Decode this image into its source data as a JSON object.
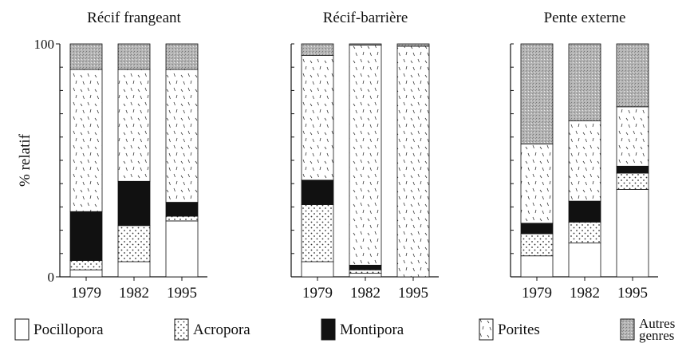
{
  "chart_data": [
    {
      "type": "bar",
      "stacked": true,
      "title": "Récif frangeant",
      "ylabel": "% relatif",
      "categories": [
        "1979",
        "1982",
        "1995"
      ],
      "ylim": [
        0,
        100
      ],
      "yticks": [
        0,
        100
      ],
      "minor_yticks": [
        10,
        20,
        30,
        40,
        50,
        60,
        70,
        80,
        90
      ],
      "series": [
        {
          "name": "Pocillopora",
          "pattern": "white",
          "values": [
            3,
            6.5,
            24
          ]
        },
        {
          "name": "Acropora",
          "pattern": "dots",
          "values": [
            4,
            15.5,
            2
          ]
        },
        {
          "name": "Montipora",
          "pattern": "black",
          "values": [
            21,
            19,
            6
          ]
        },
        {
          "name": "Porites",
          "pattern": "dashes",
          "values": [
            61,
            48,
            57
          ]
        },
        {
          "name": "Autres genres",
          "pattern": "stipple",
          "values": [
            11,
            11,
            11
          ]
        }
      ]
    },
    {
      "type": "bar",
      "stacked": true,
      "title": "Récif-barrière",
      "categories": [
        "1979",
        "1982",
        "1995"
      ],
      "ylim": [
        0,
        100
      ],
      "minor_yticks": [
        0,
        10,
        20,
        30,
        40,
        50,
        60,
        70,
        80,
        90,
        100
      ],
      "series": [
        {
          "name": "Pocillopora",
          "pattern": "white",
          "values": [
            6.5,
            1.5,
            0
          ]
        },
        {
          "name": "Acropora",
          "pattern": "dots",
          "values": [
            24.5,
            1.5,
            0
          ]
        },
        {
          "name": "Montipora",
          "pattern": "black",
          "values": [
            10.5,
            2,
            0
          ]
        },
        {
          "name": "Porites",
          "pattern": "dashes",
          "values": [
            53.5,
            94.5,
            99
          ]
        },
        {
          "name": "Autres genres",
          "pattern": "stipple",
          "values": [
            5,
            0.5,
            1
          ]
        }
      ]
    },
    {
      "type": "bar",
      "stacked": true,
      "title": "Pente externe",
      "categories": [
        "1979",
        "1982",
        "1995"
      ],
      "ylim": [
        0,
        100
      ],
      "minor_yticks": [
        0,
        10,
        20,
        30,
        40,
        50,
        60,
        70,
        80,
        90,
        100
      ],
      "series": [
        {
          "name": "Pocillopora",
          "pattern": "white",
          "values": [
            9,
            14.5,
            37.5
          ]
        },
        {
          "name": "Acropora",
          "pattern": "dots",
          "values": [
            9.5,
            9,
            7
          ]
        },
        {
          "name": "Montipora",
          "pattern": "black",
          "values": [
            4.5,
            9,
            3
          ]
        },
        {
          "name": "Porites",
          "pattern": "dashes",
          "values": [
            34,
            34.5,
            25.5
          ]
        },
        {
          "name": "Autres genres",
          "pattern": "stipple",
          "values": [
            43,
            33,
            27
          ]
        }
      ]
    }
  ]
}
